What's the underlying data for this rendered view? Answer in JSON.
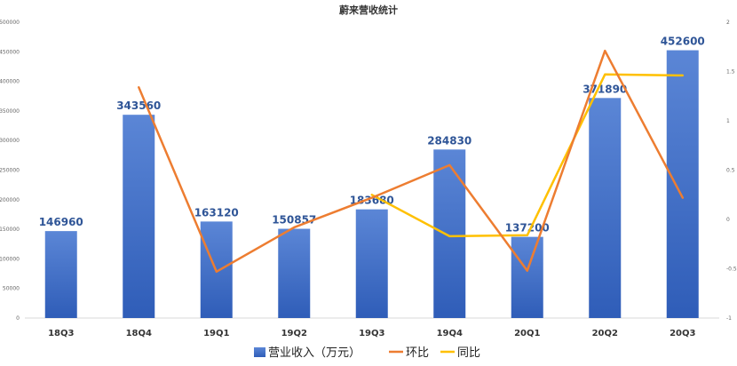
{
  "chart_data": {
    "type": "bar",
    "title": "蔚来营收统计",
    "categories": [
      "18Q3",
      "18Q4",
      "19Q1",
      "19Q2",
      "19Q3",
      "19Q4",
      "20Q1",
      "20Q2",
      "20Q3"
    ],
    "series": [
      {
        "name": "营业收入（万元）",
        "type": "bar",
        "axis": "left",
        "color": "#4472C4",
        "values": [
          146960,
          343560,
          163120,
          150857,
          183680,
          284830,
          137200,
          371890,
          452600
        ],
        "labels": [
          "146960",
          "343560",
          "163120",
          "150857",
          "183680",
          "284830",
          "137200",
          "371890",
          "452600"
        ]
      },
      {
        "name": "环比",
        "type": "line",
        "axis": "right",
        "color": "#ED7D31",
        "values": [
          null,
          1.34,
          -0.53,
          -0.08,
          0.22,
          0.55,
          -0.52,
          1.71,
          0.22
        ]
      },
      {
        "name": "同比",
        "type": "line",
        "axis": "right",
        "color": "#FFC000",
        "values": [
          null,
          null,
          null,
          null,
          0.25,
          -0.17,
          -0.16,
          1.47,
          1.46
        ]
      }
    ],
    "yleft": {
      "ylim": [
        0,
        500000
      ],
      "ticks": [
        "0",
        "50000",
        "100000",
        "150000",
        "200000",
        "250000",
        "300000",
        "350000",
        "400000",
        "450000",
        "500000"
      ]
    },
    "yright": {
      "ylim": [
        -1,
        2
      ],
      "ticks": [
        "-1",
        "-0.5",
        "0",
        "0.5",
        "1",
        "1.5",
        "2"
      ]
    },
    "grid": false,
    "legend_position": "bottom"
  }
}
